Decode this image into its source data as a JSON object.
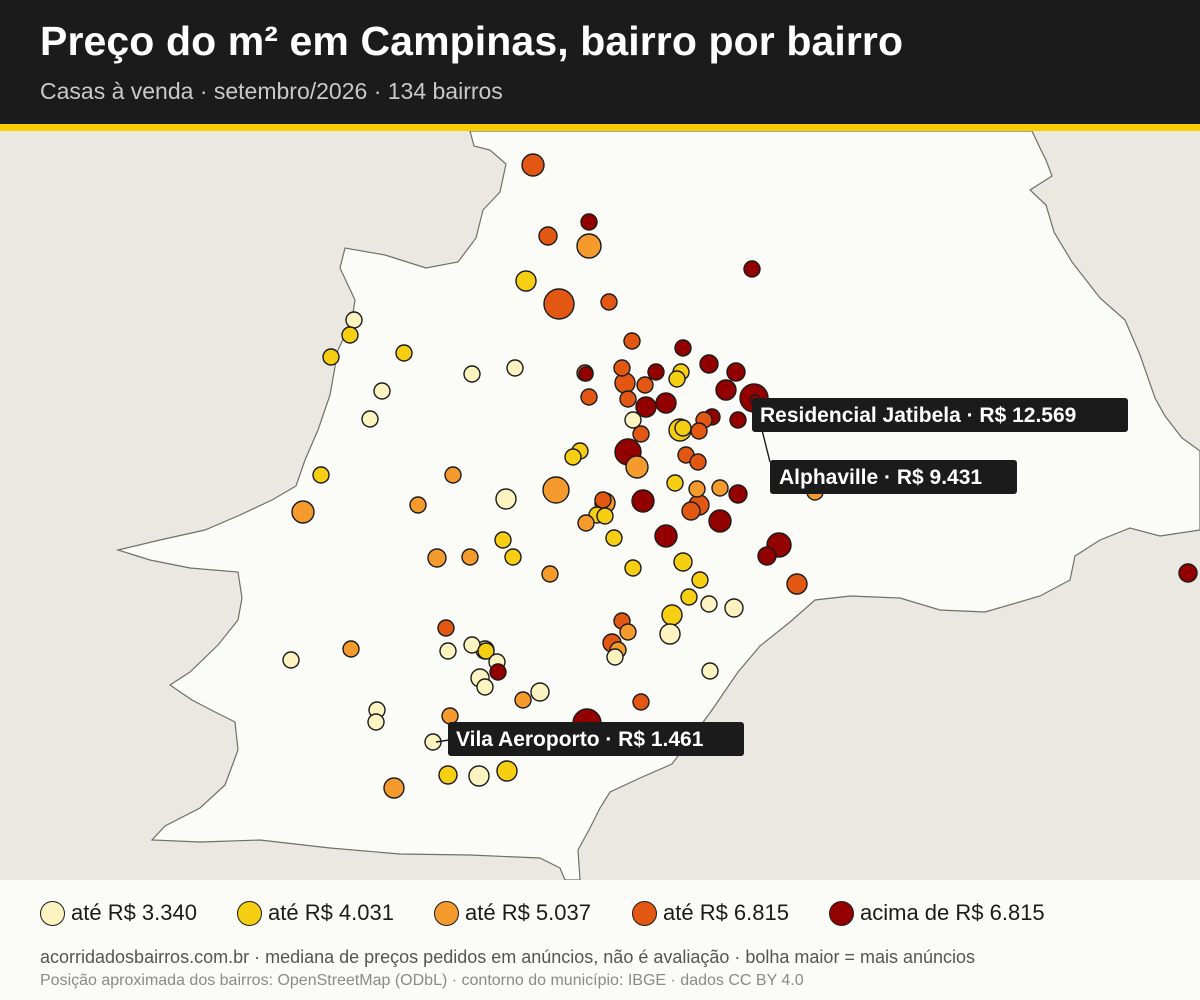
{
  "header": {
    "title": "Preço do m² em Campinas, bairro por bairro",
    "subtitle": "Casas à venda · setembro/2026 · 134 bairros"
  },
  "colors": {
    "header_bg": "#1b1b1b",
    "accent": "#f6cd00",
    "map_outside": "#ebe7e1",
    "map_municipality": "#fbfbf8",
    "bin_1": "#fdf3c0",
    "bin_2": "#f7cf12",
    "bin_3": "#f59a2c",
    "bin_4": "#e25812",
    "bin_5": "#930000"
  },
  "legend": [
    {
      "label": "até R$ 3.340",
      "color": "#fdf3c0"
    },
    {
      "label": "até R$ 4.031",
      "color": "#f7cf12"
    },
    {
      "label": "até R$ 5.037",
      "color": "#f59a2c"
    },
    {
      "label": "até R$ 6.815",
      "color": "#e25812"
    },
    {
      "label": "acima de R$ 6.815",
      "color": "#930000"
    }
  ],
  "callouts": [
    {
      "label": "Residencial Jatibela · R$ 12.569"
    },
    {
      "label": "Alphaville · R$ 9.431"
    },
    {
      "label": "Vila Aeroporto · R$ 1.461"
    }
  ],
  "footer": {
    "line1": "acorridadosbairros.com.br · mediana de preços pedidos em anúncios, não é avaliação · bolha maior = mais anúncios",
    "line2": "Posição aproximada dos bairros: OpenStreetMap (ODbL) · contorno do município: IBGE · dados CC BY 4.0"
  }
}
